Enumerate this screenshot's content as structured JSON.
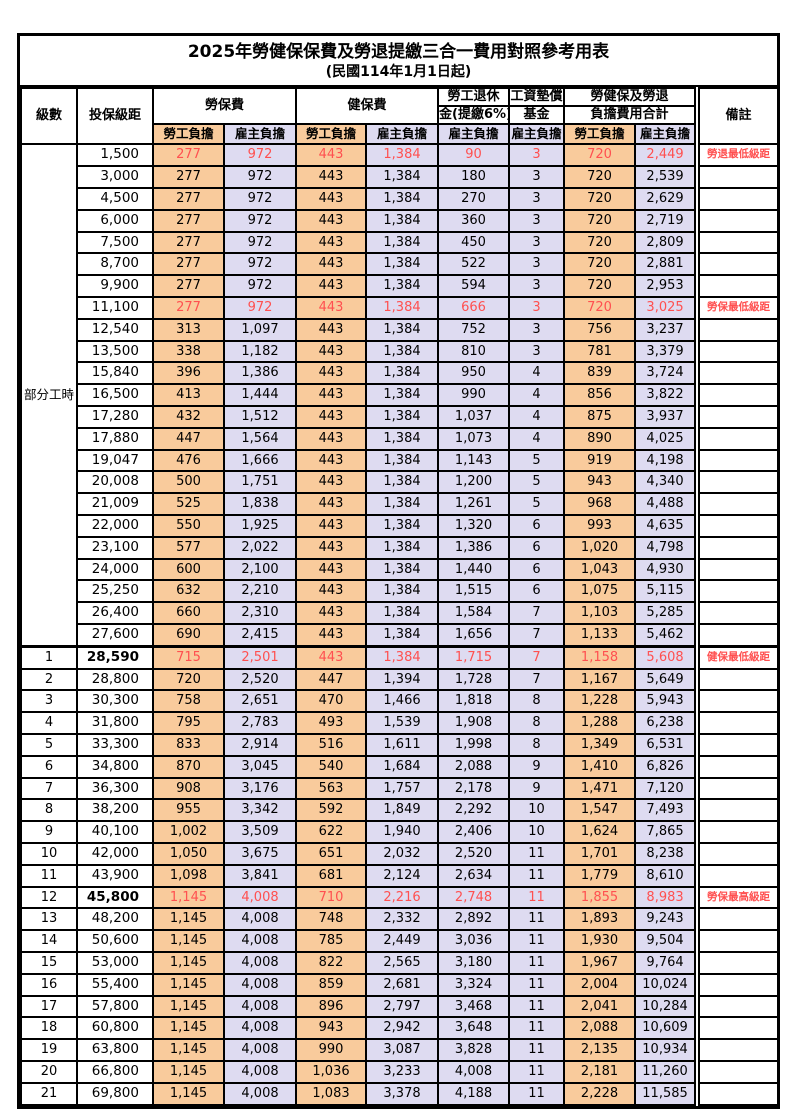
{
  "title": "2025年勞健保保費及勞退提繳三合一費用對照參考用表",
  "subtitle": "(民國114年1月1日起)",
  "header": {
    "level": "級數",
    "salary": "投保級距",
    "labor_insurance": "勞保費",
    "health_insurance": "健保費",
    "pension_line1": "勞工退休",
    "pension_line2": "金(提繳6%)",
    "wage_fund_line1": "工資墊償",
    "wage_fund_line2": "基金",
    "total_line1": "勞健保及勞退",
    "total_line2": "負擔費用合計",
    "employee": "勞工負擔",
    "employer": "雇主負擔",
    "remark": "備註"
  },
  "part_time_label": "部分工時",
  "colors": {
    "employee_bg": "#F9CB9C",
    "employer_bg": "#DEDBF1",
    "highlight_text": "#FF5050",
    "grid": "#000000"
  },
  "value_columns_order": [
    "勞保費-勞工負擔",
    "勞保費-雇主負擔",
    "健保費-勞工負擔",
    "健保費-雇主負擔",
    "勞工退休金(提繳6%)-雇主負擔",
    "工資墊償基金-雇主負擔",
    "合計-勞工負擔",
    "合計-雇主負擔"
  ],
  "rows": [
    {
      "level": "",
      "salary": "1,500",
      "values": [
        "277",
        "972",
        "443",
        "1,384",
        "90",
        "3",
        "720",
        "2,449"
      ],
      "remark": "勞退最低級距",
      "highlight": true
    },
    {
      "level": "",
      "salary": "3,000",
      "values": [
        "277",
        "972",
        "443",
        "1,384",
        "180",
        "3",
        "720",
        "2,539"
      ],
      "remark": ""
    },
    {
      "level": "",
      "salary": "4,500",
      "values": [
        "277",
        "972",
        "443",
        "1,384",
        "270",
        "3",
        "720",
        "2,629"
      ],
      "remark": ""
    },
    {
      "level": "",
      "salary": "6,000",
      "values": [
        "277",
        "972",
        "443",
        "1,384",
        "360",
        "3",
        "720",
        "2,719"
      ],
      "remark": ""
    },
    {
      "level": "",
      "salary": "7,500",
      "values": [
        "277",
        "972",
        "443",
        "1,384",
        "450",
        "3",
        "720",
        "2,809"
      ],
      "remark": ""
    },
    {
      "level": "",
      "salary": "8,700",
      "values": [
        "277",
        "972",
        "443",
        "1,384",
        "522",
        "3",
        "720",
        "2,881"
      ],
      "remark": ""
    },
    {
      "level": "",
      "salary": "9,900",
      "values": [
        "277",
        "972",
        "443",
        "1,384",
        "594",
        "3",
        "720",
        "2,953"
      ],
      "remark": ""
    },
    {
      "level": "",
      "salary": "11,100",
      "values": [
        "277",
        "972",
        "443",
        "1,384",
        "666",
        "3",
        "720",
        "3,025"
      ],
      "remark": "勞保最低級距",
      "highlight": true
    },
    {
      "level": "",
      "salary": "12,540",
      "values": [
        "313",
        "1,097",
        "443",
        "1,384",
        "752",
        "3",
        "756",
        "3,237"
      ],
      "remark": ""
    },
    {
      "level": "",
      "salary": "13,500",
      "values": [
        "338",
        "1,182",
        "443",
        "1,384",
        "810",
        "3",
        "781",
        "3,379"
      ],
      "remark": ""
    },
    {
      "level": "",
      "salary": "15,840",
      "values": [
        "396",
        "1,386",
        "443",
        "1,384",
        "950",
        "4",
        "839",
        "3,724"
      ],
      "remark": ""
    },
    {
      "level": "",
      "salary": "16,500",
      "values": [
        "413",
        "1,444",
        "443",
        "1,384",
        "990",
        "4",
        "856",
        "3,822"
      ],
      "remark": ""
    },
    {
      "level": "",
      "salary": "17,280",
      "values": [
        "432",
        "1,512",
        "443",
        "1,384",
        "1,037",
        "4",
        "875",
        "3,937"
      ],
      "remark": ""
    },
    {
      "level": "",
      "salary": "17,880",
      "values": [
        "447",
        "1,564",
        "443",
        "1,384",
        "1,073",
        "4",
        "890",
        "4,025"
      ],
      "remark": ""
    },
    {
      "level": "",
      "salary": "19,047",
      "values": [
        "476",
        "1,666",
        "443",
        "1,384",
        "1,143",
        "5",
        "919",
        "4,198"
      ],
      "remark": ""
    },
    {
      "level": "",
      "salary": "20,008",
      "values": [
        "500",
        "1,751",
        "443",
        "1,384",
        "1,200",
        "5",
        "943",
        "4,340"
      ],
      "remark": ""
    },
    {
      "level": "",
      "salary": "21,009",
      "values": [
        "525",
        "1,838",
        "443",
        "1,384",
        "1,261",
        "5",
        "968",
        "4,488"
      ],
      "remark": ""
    },
    {
      "level": "",
      "salary": "22,000",
      "values": [
        "550",
        "1,925",
        "443",
        "1,384",
        "1,320",
        "6",
        "993",
        "4,635"
      ],
      "remark": ""
    },
    {
      "level": "",
      "salary": "23,100",
      "values": [
        "577",
        "2,022",
        "443",
        "1,384",
        "1,386",
        "6",
        "1,020",
        "4,798"
      ],
      "remark": ""
    },
    {
      "level": "",
      "salary": "24,000",
      "values": [
        "600",
        "2,100",
        "443",
        "1,384",
        "1,440",
        "6",
        "1,043",
        "4,930"
      ],
      "remark": ""
    },
    {
      "level": "",
      "salary": "25,250",
      "values": [
        "632",
        "2,210",
        "443",
        "1,384",
        "1,515",
        "6",
        "1,075",
        "5,115"
      ],
      "remark": ""
    },
    {
      "level": "",
      "salary": "26,400",
      "values": [
        "660",
        "2,310",
        "443",
        "1,384",
        "1,584",
        "7",
        "1,103",
        "5,285"
      ],
      "remark": ""
    },
    {
      "level": "",
      "salary": "27,600",
      "values": [
        "690",
        "2,415",
        "443",
        "1,384",
        "1,656",
        "7",
        "1,133",
        "5,462"
      ],
      "remark": ""
    },
    {
      "level": "1",
      "salary": "28,590",
      "values": [
        "715",
        "2,501",
        "443",
        "1,384",
        "1,715",
        "7",
        "1,158",
        "5,608"
      ],
      "remark": "健保最低級距",
      "highlight": true,
      "bold_salary": true
    },
    {
      "level": "2",
      "salary": "28,800",
      "values": [
        "720",
        "2,520",
        "447",
        "1,394",
        "1,728",
        "7",
        "1,167",
        "5,649"
      ],
      "remark": ""
    },
    {
      "level": "3",
      "salary": "30,300",
      "values": [
        "758",
        "2,651",
        "470",
        "1,466",
        "1,818",
        "8",
        "1,228",
        "5,943"
      ],
      "remark": ""
    },
    {
      "level": "4",
      "salary": "31,800",
      "values": [
        "795",
        "2,783",
        "493",
        "1,539",
        "1,908",
        "8",
        "1,288",
        "6,238"
      ],
      "remark": ""
    },
    {
      "level": "5",
      "salary": "33,300",
      "values": [
        "833",
        "2,914",
        "516",
        "1,611",
        "1,998",
        "8",
        "1,349",
        "6,531"
      ],
      "remark": ""
    },
    {
      "level": "6",
      "salary": "34,800",
      "values": [
        "870",
        "3,045",
        "540",
        "1,684",
        "2,088",
        "9",
        "1,410",
        "6,826"
      ],
      "remark": ""
    },
    {
      "level": "7",
      "salary": "36,300",
      "values": [
        "908",
        "3,176",
        "563",
        "1,757",
        "2,178",
        "9",
        "1,471",
        "7,120"
      ],
      "remark": ""
    },
    {
      "level": "8",
      "salary": "38,200",
      "values": [
        "955",
        "3,342",
        "592",
        "1,849",
        "2,292",
        "10",
        "1,547",
        "7,493"
      ],
      "remark": ""
    },
    {
      "level": "9",
      "salary": "40,100",
      "values": [
        "1,002",
        "3,509",
        "622",
        "1,940",
        "2,406",
        "10",
        "1,624",
        "7,865"
      ],
      "remark": ""
    },
    {
      "level": "10",
      "salary": "42,000",
      "values": [
        "1,050",
        "3,675",
        "651",
        "2,032",
        "2,520",
        "11",
        "1,701",
        "8,238"
      ],
      "remark": ""
    },
    {
      "level": "11",
      "salary": "43,900",
      "values": [
        "1,098",
        "3,841",
        "681",
        "2,124",
        "2,634",
        "11",
        "1,779",
        "8,610"
      ],
      "remark": ""
    },
    {
      "level": "12",
      "salary": "45,800",
      "values": [
        "1,145",
        "4,008",
        "710",
        "2,216",
        "2,748",
        "11",
        "1,855",
        "8,983"
      ],
      "remark": "勞保最高級距",
      "highlight": true,
      "bold_salary": true
    },
    {
      "level": "13",
      "salary": "48,200",
      "values": [
        "1,145",
        "4,008",
        "748",
        "2,332",
        "2,892",
        "11",
        "1,893",
        "9,243"
      ],
      "remark": ""
    },
    {
      "level": "14",
      "salary": "50,600",
      "values": [
        "1,145",
        "4,008",
        "785",
        "2,449",
        "3,036",
        "11",
        "1,930",
        "9,504"
      ],
      "remark": ""
    },
    {
      "level": "15",
      "salary": "53,000",
      "values": [
        "1,145",
        "4,008",
        "822",
        "2,565",
        "3,180",
        "11",
        "1,967",
        "9,764"
      ],
      "remark": ""
    },
    {
      "level": "16",
      "salary": "55,400",
      "values": [
        "1,145",
        "4,008",
        "859",
        "2,681",
        "3,324",
        "11",
        "2,004",
        "10,024"
      ],
      "remark": ""
    },
    {
      "level": "17",
      "salary": "57,800",
      "values": [
        "1,145",
        "4,008",
        "896",
        "2,797",
        "3,468",
        "11",
        "2,041",
        "10,284"
      ],
      "remark": ""
    },
    {
      "level": "18",
      "salary": "60,800",
      "values": [
        "1,145",
        "4,008",
        "943",
        "2,942",
        "3,648",
        "11",
        "2,088",
        "10,609"
      ],
      "remark": ""
    },
    {
      "level": "19",
      "salary": "63,800",
      "values": [
        "1,145",
        "4,008",
        "990",
        "3,087",
        "3,828",
        "11",
        "2,135",
        "10,934"
      ],
      "remark": ""
    },
    {
      "level": "20",
      "salary": "66,800",
      "values": [
        "1,145",
        "4,008",
        "1,036",
        "3,233",
        "4,008",
        "11",
        "2,181",
        "11,260"
      ],
      "remark": ""
    },
    {
      "level": "21",
      "salary": "69,800",
      "values": [
        "1,145",
        "4,008",
        "1,083",
        "3,378",
        "4,188",
        "11",
        "2,228",
        "11,585"
      ],
      "remark": ""
    }
  ]
}
